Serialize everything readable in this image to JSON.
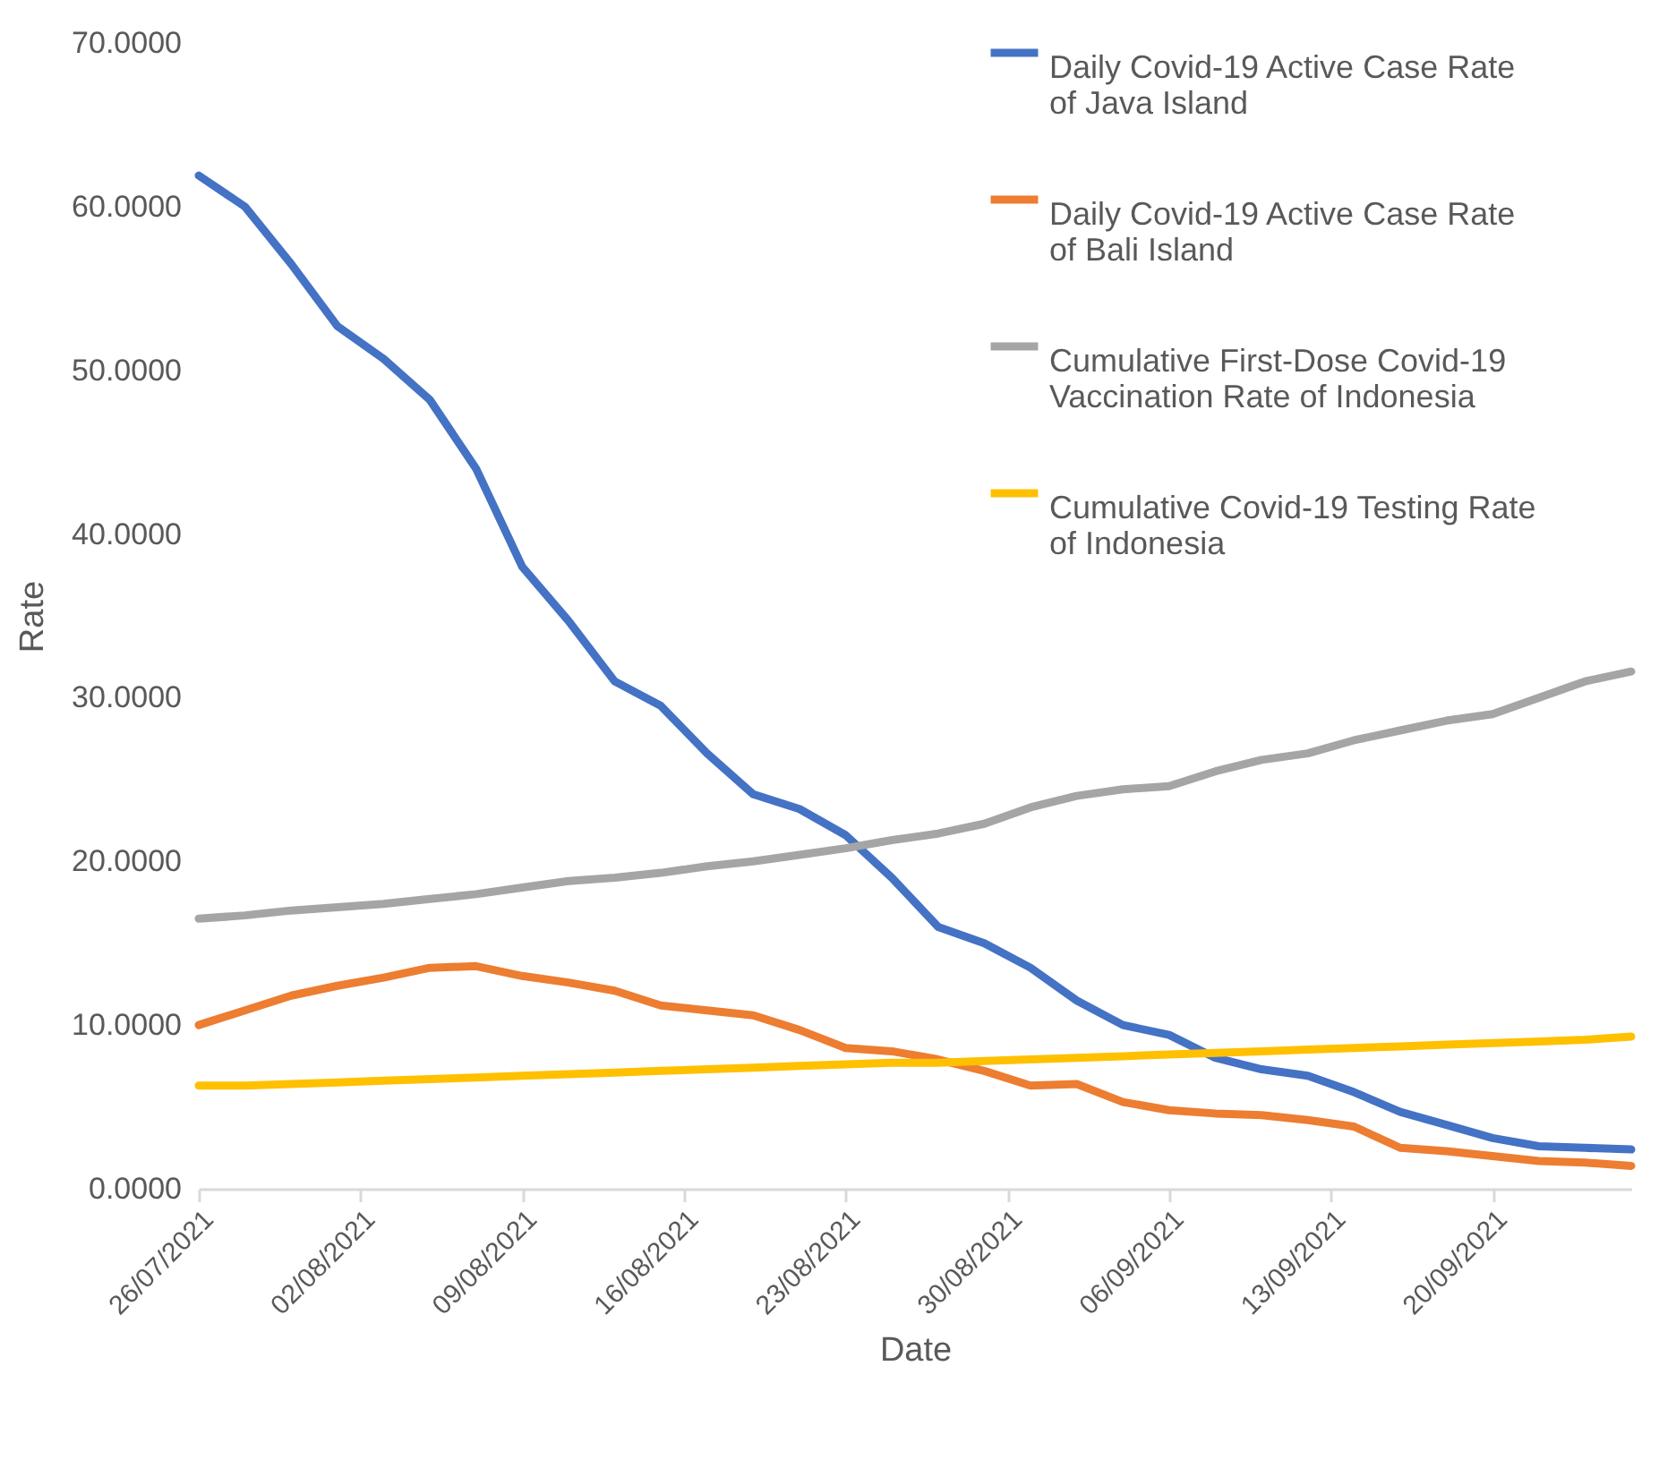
{
  "chart_data": {
    "type": "line",
    "xlabel": "Date",
    "ylabel": "Rate",
    "legend": "top right",
    "grid": false,
    "x": [
      "2021-07-26",
      "2021-07-28",
      "2021-07-30",
      "2021-08-01",
      "2021-08-03",
      "2021-08-05",
      "2021-08-07",
      "2021-08-09",
      "2021-08-11",
      "2021-08-13",
      "2021-08-15",
      "2021-08-17",
      "2021-08-19",
      "2021-08-21",
      "2021-08-23",
      "2021-08-25",
      "2021-08-27",
      "2021-08-29",
      "2021-08-31",
      "2021-09-02",
      "2021-09-04",
      "2021-09-06",
      "2021-09-08",
      "2021-09-10",
      "2021-09-12",
      "2021-09-14",
      "2021-09-16",
      "2021-09-18",
      "2021-09-20",
      "2021-09-22",
      "2021-09-24",
      "2021-09-26"
    ],
    "xlim": [
      "2021-07-26",
      "2021-09-26"
    ],
    "xticks": [
      {
        "value": "2021-07-26",
        "label": "26/07/2021"
      },
      {
        "value": "2021-08-02",
        "label": "02/08/2021"
      },
      {
        "value": "2021-08-09",
        "label": "09/08/2021"
      },
      {
        "value": "2021-08-16",
        "label": "16/08/2021"
      },
      {
        "value": "2021-08-23",
        "label": "23/08/2021"
      },
      {
        "value": "2021-08-30",
        "label": "30/08/2021"
      },
      {
        "value": "2021-09-06",
        "label": "06/09/2021"
      },
      {
        "value": "2021-09-13",
        "label": "13/09/2021"
      },
      {
        "value": "2021-09-20",
        "label": "20/09/2021"
      }
    ],
    "ylim": [
      0,
      70
    ],
    "yticks": [
      {
        "value": 0,
        "label": "0.0000"
      },
      {
        "value": 10,
        "label": "10.0000"
      },
      {
        "value": 20,
        "label": "20.0000"
      },
      {
        "value": 30,
        "label": "30.0000"
      },
      {
        "value": 40,
        "label": "40.0000"
      },
      {
        "value": 50,
        "label": "50.0000"
      },
      {
        "value": 60,
        "label": "60.0000"
      },
      {
        "value": 70,
        "label": "70.0000"
      }
    ],
    "series": [
      {
        "name": "Daily Covid-19 Active Case Rate of Java Island",
        "color": "#4472c4",
        "values": [
          61.9,
          60.0,
          56.5,
          52.7,
          50.7,
          48.2,
          44.0,
          38.0,
          34.7,
          31.0,
          29.5,
          26.6,
          24.1,
          23.2,
          21.6,
          19.0,
          16.0,
          15.0,
          13.5,
          11.5,
          10.0,
          9.4,
          8.0,
          7.3,
          6.9,
          5.9,
          4.7,
          3.9,
          3.1,
          2.6,
          2.5,
          2.4
        ]
      },
      {
        "name": "Daily Covid-19 Active Case Rate of Bali Island",
        "color": "#ed7d31",
        "values": [
          10.0,
          10.9,
          11.8,
          12.4,
          12.9,
          13.5,
          13.6,
          13.0,
          12.6,
          12.1,
          11.2,
          10.9,
          10.6,
          9.7,
          8.6,
          8.4,
          7.9,
          7.2,
          6.3,
          6.4,
          5.3,
          4.8,
          4.6,
          4.5,
          4.2,
          3.8,
          2.5,
          2.3,
          2.0,
          1.7,
          1.6,
          1.4
        ]
      },
      {
        "name": "Cumulative First-Dose Covid-19 Vaccination Rate of Indonesia",
        "color": "#a5a5a5",
        "values": [
          16.5,
          16.7,
          17.0,
          17.2,
          17.4,
          17.7,
          18.0,
          18.4,
          18.8,
          19.0,
          19.3,
          19.7,
          20.0,
          20.4,
          20.8,
          21.3,
          21.7,
          22.3,
          23.3,
          24.0,
          24.4,
          24.6,
          25.5,
          26.2,
          26.6,
          27.4,
          28.0,
          28.6,
          29.0,
          30.0,
          31.0,
          31.6
        ]
      },
      {
        "name": "Cumulative Covid-19 Testing Rate of Indonesia",
        "color": "#ffc000",
        "values": [
          6.3,
          6.3,
          6.4,
          6.5,
          6.6,
          6.7,
          6.8,
          6.9,
          7.0,
          7.1,
          7.2,
          7.3,
          7.4,
          7.5,
          7.6,
          7.7,
          7.7,
          7.8,
          7.9,
          8.0,
          8.1,
          8.2,
          8.3,
          8.4,
          8.5,
          8.6,
          8.7,
          8.8,
          8.9,
          9.0,
          9.1,
          9.3
        ]
      }
    ]
  }
}
